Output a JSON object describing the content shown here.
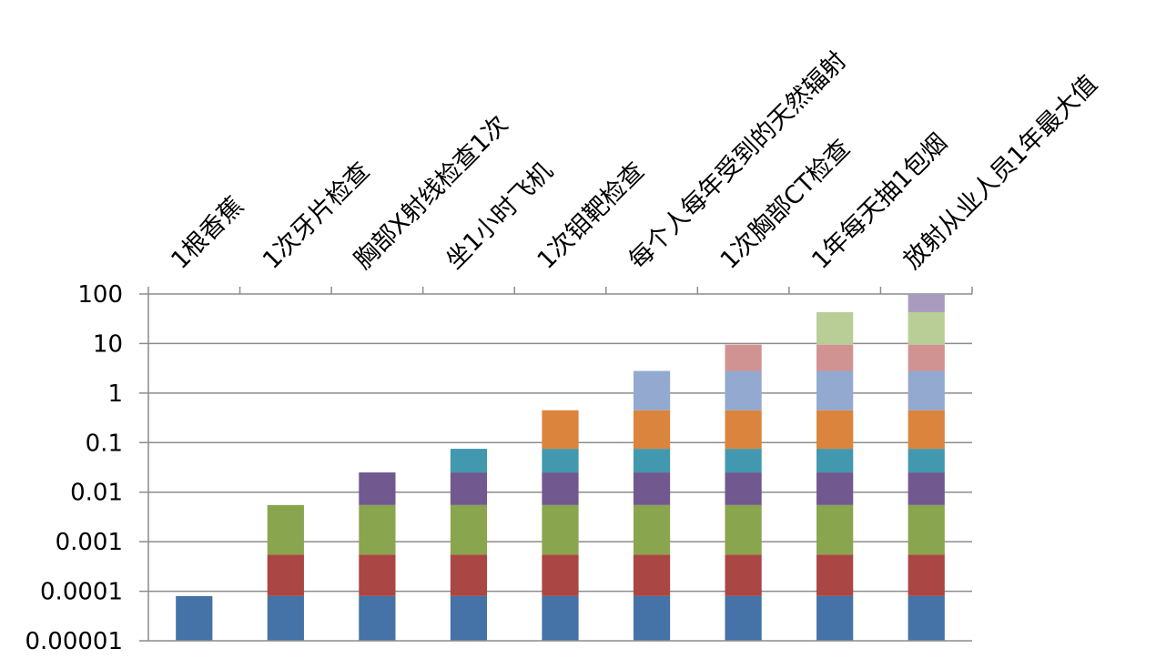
{
  "chart_data": {
    "type": "bar",
    "stacked": true,
    "title": "",
    "xlabel": "",
    "ylabel": "",
    "y_scale": "log",
    "ylim": [
      1e-05,
      100
    ],
    "y_tick_labels": [
      "0.00001",
      "0.0001",
      "0.001",
      "0.01",
      "0.1",
      "1",
      "10",
      "100"
    ],
    "grid": true,
    "legend": "none",
    "categories": [
      "1根香蕉",
      "1次牙片检查",
      "胸部X射线检查1次",
      "坐1小时飞机",
      "1次钼靶检查",
      "每个人每年受到的天然辐射",
      "1次胸部CT检查",
      "1年每天抽1包烟",
      "放射从业人员1年最大值"
    ],
    "category_values": [
      8e-05,
      0.0055,
      0.025,
      0.075,
      0.45,
      2.8,
      9.5,
      43,
      100
    ],
    "segment_upper_values": [
      8e-05,
      0.00055,
      0.0055,
      0.025,
      0.075,
      0.45,
      2.8,
      9.5,
      43,
      100
    ],
    "segment_colors": [
      "#4572a7",
      "#aa4643",
      "#89a54e",
      "#71588f",
      "#4198af",
      "#db843d",
      "#93a9cf",
      "#d19392",
      "#b9cd96",
      "#a99bbd"
    ]
  }
}
